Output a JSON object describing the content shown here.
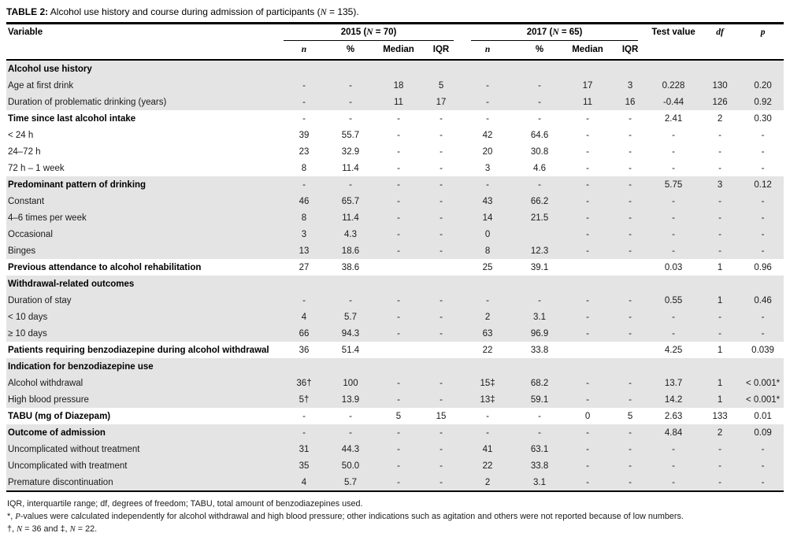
{
  "title": {
    "runs": [
      {
        "t": "TABLE 2:",
        "b": true
      },
      {
        "t": " Alcohol use history and course during admission of participants ("
      },
      {
        "t": "N",
        "i": true,
        "serif": true
      },
      {
        "t": " = 135)."
      }
    ]
  },
  "table": {
    "headers": {
      "variable": "Variable",
      "group_2015": {
        "runs": [
          {
            "t": "2015 ("
          },
          {
            "t": "N",
            "i": true,
            "serif": true
          },
          {
            "t": " = 70)"
          }
        ]
      },
      "group_2017": {
        "runs": [
          {
            "t": "2017 ("
          },
          {
            "t": "N",
            "i": true,
            "serif": true
          },
          {
            "t": " = 65)"
          }
        ]
      },
      "test_value": "Test value",
      "df": {
        "runs": [
          {
            "t": "df",
            "i": true,
            "serif": true
          }
        ]
      },
      "p": {
        "runs": [
          {
            "t": "p",
            "i": true,
            "serif": true
          }
        ]
      },
      "sub": {
        "n": "n",
        "pct": "%",
        "median": "Median",
        "iqr": "IQR"
      }
    },
    "rows": [
      {
        "label": "Alcohol use history",
        "bold": true,
        "shaded": true,
        "cells": [
          "",
          "",
          "",
          "",
          "",
          "",
          "",
          "",
          "",
          "",
          ""
        ]
      },
      {
        "label": "Age at first drink",
        "bold": false,
        "shaded": true,
        "cells": [
          "-",
          "-",
          "18",
          "5",
          "-",
          "-",
          "17",
          "3",
          "0.228",
          "130",
          "0.20"
        ]
      },
      {
        "label": "Duration of problematic drinking (years)",
        "bold": false,
        "shaded": true,
        "cells": [
          "-",
          "-",
          "11",
          "17",
          "-",
          "-",
          "11",
          "16",
          "-0.44",
          "126",
          "0.92"
        ]
      },
      {
        "label": "Time since last alcohol intake",
        "bold": true,
        "shaded": false,
        "cells": [
          "-",
          "-",
          "-",
          "-",
          "-",
          "-",
          "-",
          "-",
          "2.41",
          "2",
          "0.30"
        ]
      },
      {
        "label": "< 24 h",
        "bold": false,
        "shaded": false,
        "cells": [
          "39",
          "55.7",
          "-",
          "-",
          "42",
          "64.6",
          "-",
          "-",
          "-",
          "-",
          "-"
        ]
      },
      {
        "label": "24–72 h",
        "bold": false,
        "shaded": false,
        "cells": [
          "23",
          "32.9",
          "-",
          "-",
          "20",
          "30.8",
          "-",
          "-",
          "-",
          "-",
          "-"
        ]
      },
      {
        "label": "72 h – 1 week",
        "bold": false,
        "shaded": false,
        "cells": [
          "8",
          "11.4",
          "-",
          "-",
          "3",
          "4.6",
          "-",
          "-",
          "-",
          "-",
          "-"
        ]
      },
      {
        "label": "Predominant pattern of drinking",
        "bold": true,
        "shaded": true,
        "cells": [
          "-",
          "-",
          "-",
          "-",
          "-",
          "-",
          "-",
          "-",
          "5.75",
          "3",
          "0.12"
        ]
      },
      {
        "label": "Constant",
        "bold": false,
        "shaded": true,
        "cells": [
          "46",
          "65.7",
          "-",
          "-",
          "43",
          "66.2",
          "-",
          "-",
          "-",
          "-",
          "-"
        ]
      },
      {
        "label": "4–6 times per week",
        "bold": false,
        "shaded": true,
        "cells": [
          "8",
          "11.4",
          "-",
          "-",
          "14",
          "21.5",
          "-",
          "-",
          "-",
          "-",
          "-"
        ]
      },
      {
        "label": "Occasional",
        "bold": false,
        "shaded": true,
        "cells": [
          "3",
          "4.3",
          "-",
          "-",
          "0",
          "",
          "-",
          "-",
          "-",
          "-",
          "-"
        ]
      },
      {
        "label": "Binges",
        "bold": false,
        "shaded": true,
        "cells": [
          "13",
          "18.6",
          "-",
          "-",
          "8",
          "12.3",
          "-",
          "-",
          "-",
          "-",
          "-"
        ]
      },
      {
        "label": "Previous attendance to alcohol rehabilitation",
        "bold": true,
        "shaded": false,
        "cells": [
          "27",
          "38.6",
          "",
          "",
          "25",
          "39.1",
          "",
          "",
          "0.03",
          "1",
          "0.96"
        ]
      },
      {
        "label": "Withdrawal-related outcomes",
        "bold": true,
        "shaded": true,
        "cells": [
          "",
          "",
          "",
          "",
          "",
          "",
          "",
          "",
          "",
          "",
          ""
        ]
      },
      {
        "label": "Duration of stay",
        "bold": false,
        "shaded": true,
        "cells": [
          "-",
          "-",
          "-",
          "-",
          "-",
          "-",
          "-",
          "-",
          "0.55",
          "1",
          "0.46"
        ]
      },
      {
        "label": "< 10 days",
        "bold": false,
        "shaded": true,
        "cells": [
          "4",
          "5.7",
          "-",
          "-",
          "2",
          "3.1",
          "-",
          "-",
          "-",
          "-",
          "-"
        ]
      },
      {
        "label": "≥ 10 days",
        "bold": false,
        "shaded": true,
        "cells": [
          "66",
          "94.3",
          "-",
          "-",
          "63",
          "96.9",
          "-",
          "-",
          "-",
          "-",
          "-"
        ]
      },
      {
        "label": "Patients requiring benzodiazepine during alcohol withdrawal",
        "bold": true,
        "shaded": false,
        "cells": [
          "36",
          "51.4",
          "",
          "",
          "22",
          "33.8",
          "",
          "",
          "4.25",
          "1",
          "0.039"
        ]
      },
      {
        "label": "Indication for benzodiazepine use",
        "bold": true,
        "shaded": true,
        "cells": [
          "",
          "",
          "",
          "",
          "",
          "",
          "",
          "",
          "",
          "",
          ""
        ]
      },
      {
        "label": "Alcohol withdrawal",
        "bold": false,
        "shaded": true,
        "cells": [
          "36†",
          "100",
          "-",
          "-",
          "15‡",
          "68.2",
          "-",
          "-",
          "13.7",
          "1",
          "< 0.001*"
        ]
      },
      {
        "label": "High blood pressure",
        "bold": false,
        "shaded": true,
        "cells": [
          "5†",
          "13.9",
          "-",
          "-",
          "13‡",
          "59.1",
          "-",
          "-",
          "14.2",
          "1",
          "< 0.001*"
        ]
      },
      {
        "label": "TABU (mg of Diazepam)",
        "bold": true,
        "shaded": false,
        "cells": [
          "-",
          "-",
          "5",
          "15",
          "-",
          "-",
          "0",
          "5",
          "2.63",
          "133",
          "0.01"
        ]
      },
      {
        "label": "Outcome of admission",
        "bold": true,
        "shaded": true,
        "cells": [
          "-",
          "-",
          "-",
          "-",
          "-",
          "-",
          "-",
          "-",
          "4.84",
          "2",
          "0.09"
        ]
      },
      {
        "label": "Uncomplicated without treatment",
        "bold": false,
        "shaded": true,
        "cells": [
          "31",
          "44.3",
          "-",
          "-",
          "41",
          "63.1",
          "-",
          "-",
          "-",
          "-",
          "-"
        ]
      },
      {
        "label": "Uncomplicated with treatment",
        "bold": false,
        "shaded": true,
        "cells": [
          "35",
          "50.0",
          "-",
          "-",
          "22",
          "33.8",
          "-",
          "-",
          "-",
          "-",
          "-"
        ]
      },
      {
        "label": "Premature discontinuation",
        "bold": false,
        "shaded": true,
        "cells": [
          "4",
          "5.7",
          "-",
          "-",
          "2",
          "3.1",
          "-",
          "-",
          "-",
          "-",
          "-"
        ]
      }
    ]
  },
  "footnotes": [
    {
      "runs": [
        {
          "t": "IQR, interquartile range; df, degrees of freedom; TABU, total amount of benzodiazepines used."
        }
      ]
    },
    {
      "runs": [
        {
          "t": "*, "
        },
        {
          "t": "P",
          "i": true,
          "serif": true
        },
        {
          "t": "-values were calculated independently for alcohol withdrawal and high blood pressure; other indications such as agitation and others were not reported because of low numbers."
        }
      ]
    },
    {
      "runs": [
        {
          "t": "†, "
        },
        {
          "t": "N",
          "i": true,
          "serif": true
        },
        {
          "t": " = 36 and ‡, "
        },
        {
          "t": "N",
          "i": true,
          "serif": true
        },
        {
          "t": " = 22."
        }
      ]
    }
  ]
}
